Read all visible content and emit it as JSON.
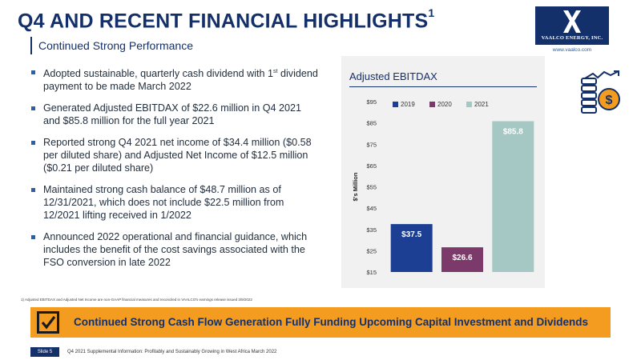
{
  "header": {
    "title": "Q4 AND RECENT FINANCIAL HIGHLIGHTS",
    "title_sup": "1",
    "subtitle": "Continued Strong Performance"
  },
  "logo": {
    "company": "VAALCO ENERGY, INC.",
    "url": "www.vaalco.com"
  },
  "bullets": [
    {
      "before": "Adopted sustainable, quarterly cash dividend with 1",
      "sup": "st",
      "after": " dividend payment to be made March 2022"
    },
    {
      "before": "Generated Adjusted EBITDAX of $22.6 million in Q4 2021 and $85.8 million for the full year 2021",
      "sup": "",
      "after": ""
    },
    {
      "before": "Reported strong Q4 2021 net income of $34.4 million ($0.58 per diluted share) and Adjusted Net Income of $12.5 million ($0.21 per diluted share)",
      "sup": "",
      "after": ""
    },
    {
      "before": "Maintained strong cash balance of $48.7 million as of 12/31/2021, which does not include $22.5 million from 12/2021 lifting received in 1/2022",
      "sup": "",
      "after": ""
    },
    {
      "before": "Announced 2022 operational and financial guidance, which includes the benefit of the cost savings associated with the FSO conversion in late 2022",
      "sup": "",
      "after": ""
    }
  ],
  "chart_data": {
    "type": "bar",
    "title": "Adjusted EBITDAX",
    "ylabel": "$'s Million",
    "xlabel": "",
    "categories": [
      "2019",
      "2020",
      "2021"
    ],
    "values": [
      37.5,
      26.6,
      85.8
    ],
    "value_labels": [
      "$37.5",
      "$26.6",
      "$85.8"
    ],
    "colors": [
      "#1c3f94",
      "#7b3a6a",
      "#a6c8c4"
    ],
    "ylim": [
      15,
      95
    ],
    "yticks": [
      15,
      25,
      35,
      45,
      55,
      65,
      75,
      85,
      95
    ],
    "ytick_labels": [
      "$15",
      "$25",
      "$35",
      "$45",
      "$55",
      "$65",
      "$75",
      "$85",
      "$95"
    ],
    "grid": false,
    "legend": {
      "position": "top-left",
      "entries": [
        "2019",
        "2020",
        "2021"
      ]
    }
  },
  "footnote": "1)   Adjusted EBITDAX and Adjusted Net Income are non-GAAP financial measures and reconciled in VAALCO's earnings release issued 3/9/2022",
  "banner": {
    "text": "Continued Strong Cash Flow Generation Fully Funding Upcoming Capital Investment and Dividends",
    "color": "#f39c1f"
  },
  "footer": {
    "slide": "Slide 5",
    "text": "Q4 2021 Supplemental Information: Profitably and Sustainably Growing in West Africa March 2022"
  },
  "colors": {
    "navy": "#14306b",
    "accent_blue": "#2d5fa6",
    "orange": "#f39c1f"
  }
}
